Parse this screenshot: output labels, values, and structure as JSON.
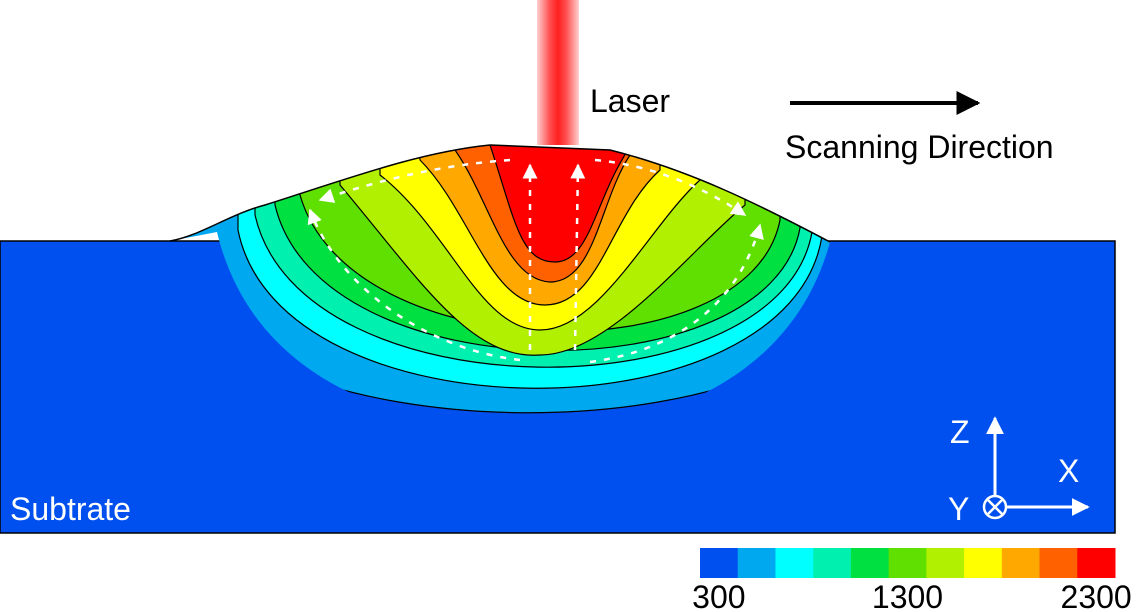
{
  "labels": {
    "laser": "Laser",
    "scanning_direction": "Scanning Direction",
    "substrate": "Subtrate"
  },
  "axes": {
    "z": "Z",
    "x": "X",
    "y": "Y"
  },
  "colorbar": {
    "colors": [
      "#0050f0",
      "#00a8f0",
      "#00ffff",
      "#00f0b0",
      "#00e040",
      "#60e000",
      "#b0f000",
      "#ffff00",
      "#ffa800",
      "#ff6000",
      "#ff0000"
    ],
    "ticks": [
      300,
      1300,
      2300
    ]
  }
}
